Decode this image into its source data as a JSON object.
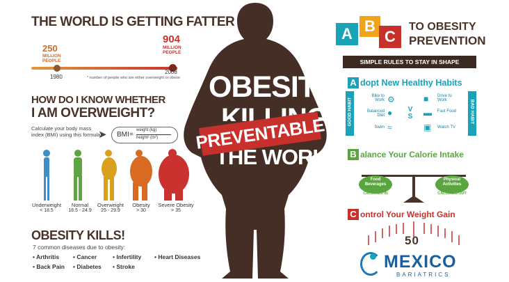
{
  "left": {
    "title": "THE WORLD IS GETTING FATTER",
    "stat1": {
      "value": "250",
      "unit": "MILLION PEOPLE",
      "year": "1980"
    },
    "stat2": {
      "value": "904",
      "unit": "MILLION PEOPLE",
      "year": "2008"
    },
    "note": "* number of people who are either overweight or obese",
    "bmi_title_1": "HOW DO I KNOW WHETHER",
    "bmi_title_2": "I AM OVERWEIGHT?",
    "bmi_intro": "Calculate your body mass index (BMI) using this formula",
    "bmi_label": "BMI",
    "bmi_num": "weight (kg)",
    "bmi_den": "height² (m²)",
    "categories": [
      {
        "label": "Underweight",
        "range": "< 18.5",
        "color": "#3f8fc6"
      },
      {
        "label": "Normal",
        "range": "18.5 - 24.9",
        "color": "#5ea541"
      },
      {
        "label": "Overweight",
        "range": "25 - 29.9",
        "color": "#d9a01e"
      },
      {
        "label": "Obesity",
        "range": "> 30",
        "color": "#d86a22"
      },
      {
        "label": "Severe Obesity",
        "range": "> 35",
        "color": "#c9322e"
      }
    ],
    "kills_title": "OBESITY KILLS!",
    "kills_sub": "7 common diseases due to obesity:",
    "diseases": [
      "Arthritis",
      "Cancer",
      "Infertility",
      "Heart Diseases",
      "Back Pain",
      "Diabetes",
      "Stroke"
    ]
  },
  "center": {
    "line1": "OBESITY",
    "is": "IS",
    "line2": "KILLING",
    "line3": "THE WORLD",
    "stamp": "PREVENTABLE"
  },
  "right": {
    "blocks": [
      "A",
      "B",
      "C"
    ],
    "header_1": "TO OBESITY",
    "header_2": "PREVENTION",
    "banner": "SIMPLE RULES TO STAY IN SHAPE",
    "a_letter": "A",
    "a_title": "dopt New Healthy Habits",
    "good_label": "GOOD HABIT",
    "bad_label": "BAD HABIT",
    "good": [
      "Bike to Work",
      "Balanced Diet",
      "Swim"
    ],
    "bad": [
      "Drive to Work",
      "Fast Food",
      "Watch TV"
    ],
    "vs": "V S",
    "b_letter": "B",
    "b_title": "alance Your Calorie Intake",
    "left_pan": "Food Beverages",
    "left_pan_sub": "CALORIES IN",
    "right_pan": "Physical Activities",
    "right_pan_sub": "CALORIES OUT",
    "c_letter": "C",
    "c_title": "ontrol Your Weight Gain",
    "scale_value": "50",
    "brand": "MEXICO",
    "brand_sub": "BARIATRICS"
  },
  "colors": {
    "brown": "#4a3228",
    "red": "#c8312b",
    "teal": "#1aa3b8",
    "blue": "#2277b8",
    "green": "#5aa53f"
  }
}
